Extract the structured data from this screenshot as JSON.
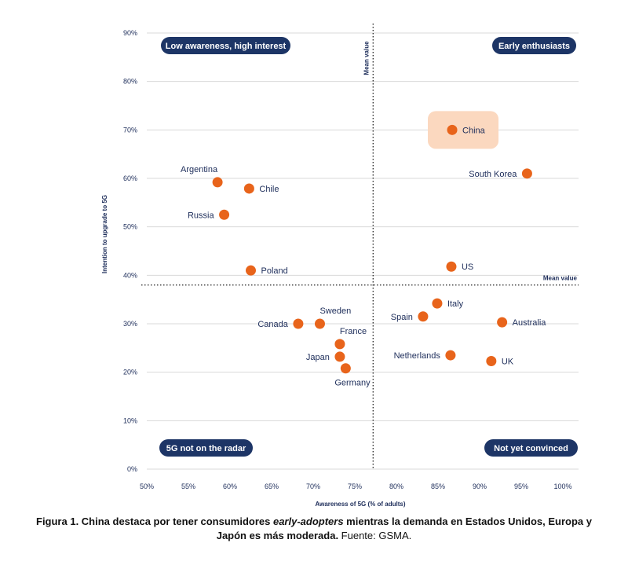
{
  "chart_data": {
    "type": "scatter",
    "xlabel": "Awareness of 5G (% of adults)",
    "ylabel": "Intention to upgrade to 5G",
    "xlim": [
      50,
      100
    ],
    "ylim": [
      0,
      90
    ],
    "x_ticks": [
      "50%",
      "55%",
      "60%",
      "65%",
      "70%",
      "75%",
      "80%",
      "85%",
      "90%",
      "95%",
      "100%"
    ],
    "y_ticks": [
      "0%",
      "10%",
      "20%",
      "30%",
      "40%",
      "50%",
      "60%",
      "70%",
      "80%",
      "90%"
    ],
    "x_tick_values": [
      50,
      55,
      60,
      65,
      70,
      75,
      80,
      85,
      90,
      95,
      100
    ],
    "y_tick_values": [
      0,
      10,
      20,
      30,
      40,
      50,
      60,
      70,
      80,
      90
    ],
    "mean_x": 77.2,
    "mean_y": 38,
    "mean_x_label": "Mean value",
    "mean_y_label": "Mean value",
    "quadrants": {
      "top_left": "Low awareness, high interest",
      "top_right": "Early enthusiasts",
      "bottom_left": "5G not on the radar",
      "bottom_right": "Not yet convinced"
    },
    "points": [
      {
        "name": "Argentina",
        "x": 58.5,
        "y": 59.2,
        "label_pos": "above-left"
      },
      {
        "name": "Chile",
        "x": 62.3,
        "y": 57.9,
        "label_pos": "right"
      },
      {
        "name": "Russia",
        "x": 59.3,
        "y": 52.5,
        "label_pos": "left"
      },
      {
        "name": "Poland",
        "x": 62.5,
        "y": 41.0,
        "label_pos": "right"
      },
      {
        "name": "Canada",
        "x": 68.2,
        "y": 30.0,
        "label_pos": "left"
      },
      {
        "name": "Sweden",
        "x": 70.8,
        "y": 30.0,
        "label_pos": "above-right"
      },
      {
        "name": "France",
        "x": 73.2,
        "y": 25.8,
        "label_pos": "above-right"
      },
      {
        "name": "Japan",
        "x": 73.2,
        "y": 23.2,
        "label_pos": "left"
      },
      {
        "name": "Germany",
        "x": 73.9,
        "y": 20.8,
        "label_pos": "below"
      },
      {
        "name": "China",
        "x": 86.7,
        "y": 70.0,
        "label_pos": "right",
        "highlight": true
      },
      {
        "name": "South Korea",
        "x": 95.7,
        "y": 61.0,
        "label_pos": "left"
      },
      {
        "name": "US",
        "x": 86.6,
        "y": 41.8,
        "label_pos": "right"
      },
      {
        "name": "Italy",
        "x": 84.9,
        "y": 34.2,
        "label_pos": "right"
      },
      {
        "name": "Spain",
        "x": 83.2,
        "y": 31.5,
        "label_pos": "left"
      },
      {
        "name": "Australia",
        "x": 92.7,
        "y": 30.3,
        "label_pos": "right"
      },
      {
        "name": "Netherlands",
        "x": 86.5,
        "y": 23.5,
        "label_pos": "left"
      },
      {
        "name": "UK",
        "x": 91.4,
        "y": 22.3,
        "label_pos": "right"
      }
    ],
    "colors": {
      "point": "#e8641b",
      "highlight_bg": "#fbd8bf",
      "pill": "#1d3566",
      "grid": "#d9d9d9",
      "text": "#1d2d5a"
    }
  },
  "caption": {
    "bold_part1": "Figura 1. China destaca por tener consumidores ",
    "bold_italic": "early-adopters",
    "bold_part2": " mientras la demanda en Estados Unidos, Europa y Japón es más moderada.",
    "normal": " Fuente: GSMA."
  }
}
